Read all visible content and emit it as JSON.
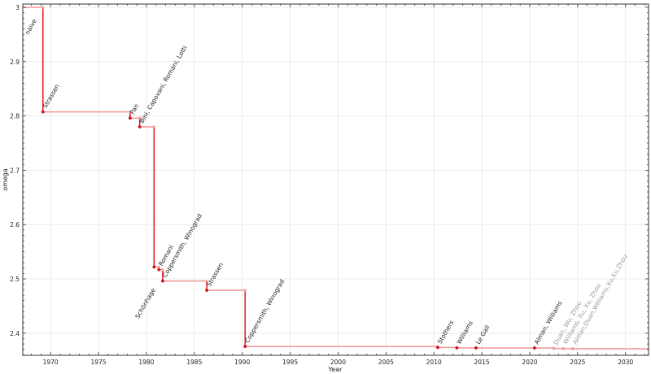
{
  "chart_data": {
    "type": "line",
    "step": true,
    "xlabel": "Year",
    "ylabel": "omega",
    "xlim": [
      1967.1,
      2032.4
    ],
    "ylim": [
      2.3593,
      3.006
    ],
    "xticks": [
      1970,
      1975,
      1980,
      1985,
      1990,
      1995,
      2000,
      2005,
      2010,
      2015,
      2020,
      2025,
      2030
    ],
    "yticks": [
      2.4,
      2.5,
      2.6,
      2.7,
      2.8,
      2.9,
      3
    ],
    "ytick_labels": [
      "2.4",
      "2.5",
      "2.6",
      "2.7",
      "2.8",
      "2.9",
      "3"
    ],
    "grid": true,
    "colors": {
      "step_vertical": "#e0141e",
      "step_horizontal": "#f09494",
      "point": "#d0101a",
      "recent_point": "#f0a0a0",
      "label": "#222222",
      "recent_label": "#999999"
    },
    "points": [
      {
        "label": "naive",
        "year": 1967.1,
        "omega": 3.0
      },
      {
        "label": "Strassen",
        "year": 1969.2,
        "omega": 2.8074
      },
      {
        "label": "Pan",
        "year": 1978.3,
        "omega": 2.796
      },
      {
        "label": "Bini, Capovani, Romani, Lotti",
        "year": 1979.3,
        "omega": 2.78
      },
      {
        "label": "Schönhage",
        "year": 1980.8,
        "omega": 2.522
      },
      {
        "label": "Romani",
        "year": 1981.3,
        "omega": 2.517
      },
      {
        "label": "Coppersmith, Winograd",
        "year": 1981.7,
        "omega": 2.496
      },
      {
        "label": "Strassen",
        "year": 1986.3,
        "omega": 2.479
      },
      {
        "label": "Coppersmith, Winograd",
        "year": 1990.3,
        "omega": 2.3755
      },
      {
        "label": "Stothers",
        "year": 2010.4,
        "omega": 2.3737
      },
      {
        "label": "Williams",
        "year": 2012.4,
        "omega": 2.3729
      },
      {
        "label": "Le Gall",
        "year": 2014.4,
        "omega": 2.37286
      },
      {
        "label": "Alman, Williams",
        "year": 2020.5,
        "omega": 2.37286
      },
      {
        "label": "Duan, Wu, Zhou",
        "year": 2022.5,
        "omega": 2.37188,
        "recent": true
      },
      {
        "label": "Williams, Xu, Xu, Zhou",
        "year": 2023.5,
        "omega": 2.37155,
        "recent": true
      },
      {
        "label": "Alman,Duan,Williams,Xu,Xu,Zhou",
        "year": 2024.5,
        "omega": 2.37134,
        "recent": true
      }
    ]
  }
}
